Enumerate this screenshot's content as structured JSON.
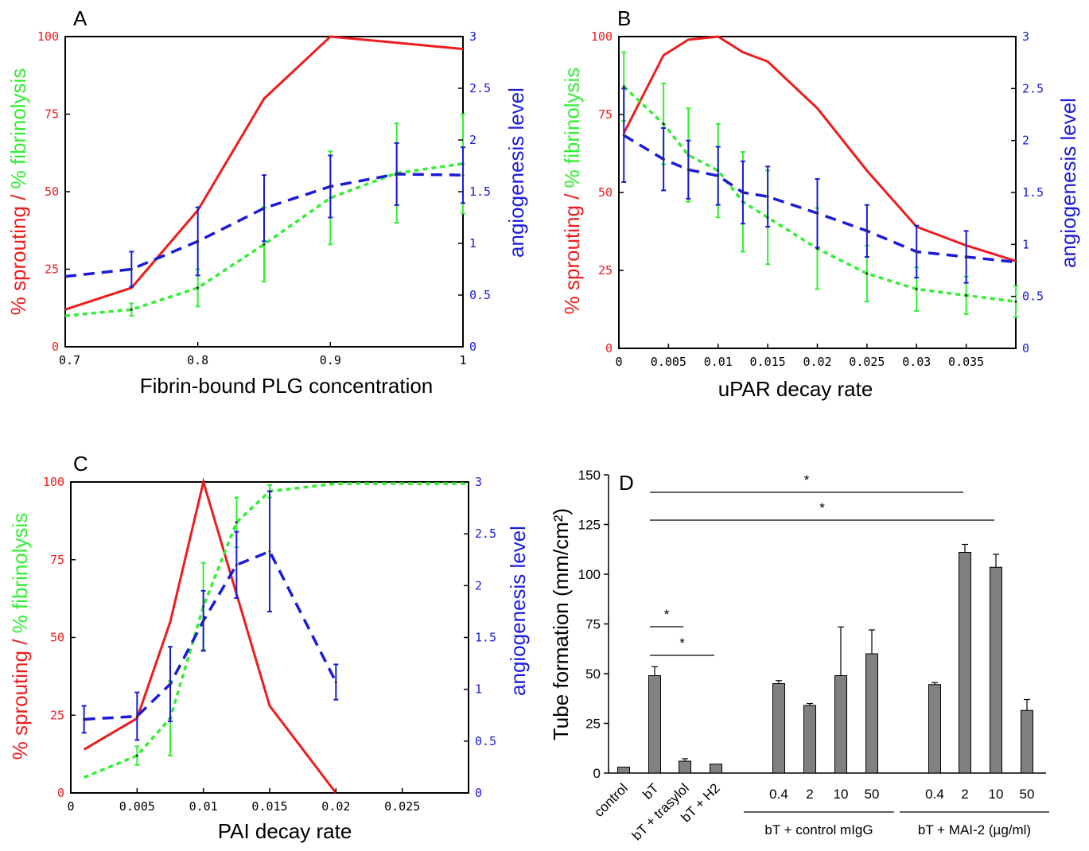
{
  "colors": {
    "red": "#ee1c1c",
    "green": "#33ee33",
    "blue": "#1a1adb",
    "bar": "#808080",
    "black": "#000000"
  },
  "chart_data": [
    {
      "panel": "A",
      "type": "line",
      "xlabel": "Fibrin-bound PLG concentration",
      "ylabel_left_red": "% sprouting",
      "ylabel_left_sep": " / ",
      "ylabel_left_green": "% fibrinolysis",
      "ylabel_right": "angiogenesis level",
      "xlim": [
        0.7,
        1.0
      ],
      "ylim_left": [
        0,
        100
      ],
      "ylim_right": [
        0,
        3
      ],
      "xticks": [
        "0.7",
        "0.8",
        "0.9",
        "1"
      ],
      "xtick_values": [
        0.7,
        0.8,
        0.9,
        1.0
      ],
      "yticks_left": [
        "0",
        "25",
        "50",
        "75",
        "100"
      ],
      "yticks_right": [
        "0",
        "0.5",
        "1",
        "1.5",
        "2",
        "2.5",
        "3"
      ],
      "series": [
        {
          "name": "% sprouting",
          "color": "red",
          "style": "solid",
          "x": [
            0.7,
            0.75,
            0.8,
            0.85,
            0.9,
            0.95,
            1.0
          ],
          "y": [
            12,
            19,
            44,
            80,
            100,
            98,
            96
          ]
        },
        {
          "name": "% fibrinolysis",
          "color": "green",
          "style": "dotted",
          "x": [
            0.7,
            0.75,
            0.8,
            0.85,
            0.9,
            0.95,
            1.0
          ],
          "y": [
            10,
            12,
            19,
            33,
            48,
            56,
            59
          ],
          "err": [
            0,
            2,
            6,
            12,
            15,
            16,
            16
          ]
        },
        {
          "name": "angiogenesis level",
          "color": "blue",
          "style": "dashed",
          "axis": "right",
          "x": [
            0.7,
            0.75,
            0.8,
            0.85,
            0.9,
            0.95,
            1.0
          ],
          "y": [
            0.68,
            0.75,
            1.02,
            1.34,
            1.55,
            1.67,
            1.66
          ],
          "err": [
            0,
            0.17,
            0.33,
            0.32,
            0.3,
            0.3,
            0.27
          ]
        }
      ]
    },
    {
      "panel": "B",
      "type": "line",
      "xlabel": "uPAR decay rate",
      "ylabel_left_red": "% sprouting",
      "ylabel_left_sep": " / ",
      "ylabel_left_green": "% fibrinolysis",
      "ylabel_right": "angiogenesis level",
      "xlim": [
        0,
        0.04
      ],
      "ylim_left": [
        0,
        100
      ],
      "ylim_right": [
        0,
        3
      ],
      "xticks": [
        "0",
        "0.005",
        "0.01",
        "0.015",
        "0.02",
        "0.025",
        "0.03",
        "0.035"
      ],
      "xtick_values": [
        0,
        0.005,
        0.01,
        0.015,
        0.02,
        0.025,
        0.03,
        0.035
      ],
      "yticks_left": [
        "0",
        "25",
        "50",
        "75",
        "100"
      ],
      "yticks_right": [
        "0",
        "0.5",
        "1",
        "1.5",
        "2",
        "2.5",
        "3"
      ],
      "series": [
        {
          "name": "% sprouting",
          "color": "red",
          "style": "solid",
          "x": [
            0.0005,
            0.0045,
            0.007,
            0.01,
            0.0125,
            0.015,
            0.02,
            0.025,
            0.03,
            0.035,
            0.04
          ],
          "y": [
            69,
            94,
            99,
            100,
            95,
            92,
            77,
            57,
            39,
            33,
            28
          ]
        },
        {
          "name": "% fibrinolysis",
          "color": "green",
          "style": "dotted",
          "x": [
            0.0005,
            0.0045,
            0.007,
            0.01,
            0.0125,
            0.015,
            0.02,
            0.025,
            0.03,
            0.035,
            0.04
          ],
          "y": [
            84,
            72,
            62,
            57,
            47,
            42,
            32,
            24,
            19,
            17,
            15
          ],
          "err": [
            11,
            13,
            15,
            15,
            16,
            15,
            13,
            9,
            7,
            6,
            5
          ]
        },
        {
          "name": "angiogenesis level",
          "color": "blue",
          "style": "dashed",
          "axis": "right",
          "x": [
            0.0005,
            0.0045,
            0.007,
            0.01,
            0.0125,
            0.015,
            0.02,
            0.025,
            0.03,
            0.035,
            0.04
          ],
          "y": [
            2.05,
            1.82,
            1.72,
            1.66,
            1.5,
            1.46,
            1.3,
            1.13,
            0.93,
            0.88,
            0.83
          ],
          "err": [
            0.45,
            0.3,
            0.28,
            0.28,
            0.3,
            0.29,
            0.33,
            0.25,
            0.25,
            0.25,
            0
          ]
        }
      ]
    },
    {
      "panel": "C",
      "type": "line",
      "xlabel": "PAI decay rate",
      "ylabel_left_red": "% sprouting",
      "ylabel_left_sep": " / ",
      "ylabel_left_green": "% fibrinolysis",
      "ylabel_right": "angiogenesis level",
      "xlim": [
        0,
        0.03
      ],
      "ylim_left": [
        0,
        100
      ],
      "ylim_right": [
        0,
        3
      ],
      "xticks": [
        "0",
        "0.005",
        "0.01",
        "0.015",
        "0.02",
        "0.025"
      ],
      "xtick_values": [
        0,
        0.005,
        0.01,
        0.015,
        0.02,
        0.025
      ],
      "yticks_left": [
        "0",
        "25",
        "50",
        "75",
        "100"
      ],
      "yticks_right": [
        "0",
        "0.5",
        "1",
        "1.5",
        "2",
        "2.5",
        "3"
      ],
      "series": [
        {
          "name": "% sprouting",
          "color": "red",
          "style": "solid",
          "x": [
            0.001,
            0.005,
            0.0075,
            0.01,
            0.015,
            0.02
          ],
          "y": [
            14,
            24,
            55,
            100,
            28,
            0
          ]
        },
        {
          "name": "% fibrinolysis",
          "color": "green",
          "style": "dotted",
          "x": [
            0.001,
            0.005,
            0.0075,
            0.01,
            0.0125,
            0.015,
            0.02,
            0.025,
            0.03
          ],
          "y": [
            5,
            12,
            24,
            60,
            87,
            97,
            99.5,
            99.5,
            99.5
          ],
          "err": [
            0,
            3,
            12,
            14,
            8,
            2,
            0,
            0,
            0
          ]
        },
        {
          "name": "angiogenesis level",
          "color": "blue",
          "style": "dashed",
          "axis": "right",
          "x": [
            0.001,
            0.005,
            0.0075,
            0.01,
            0.0125,
            0.015,
            0.02
          ],
          "y": [
            0.71,
            0.74,
            1.05,
            1.66,
            2.2,
            2.33,
            1.07
          ],
          "err": [
            0.13,
            0.23,
            0.36,
            0.29,
            0.32,
            0.58,
            0.17
          ]
        }
      ]
    },
    {
      "panel": "D",
      "type": "bar",
      "ylabel": "Tube formation (mm/cm²)",
      "ylim": [
        0,
        150
      ],
      "yticks": [
        "0",
        "25",
        "50",
        "75",
        "100",
        "125",
        "150"
      ],
      "categories": [
        "control",
        "bT",
        "bT + trasylol",
        "bT + H2",
        "0.4",
        "2",
        "10",
        "50",
        "0.4",
        "2",
        "10",
        "50"
      ],
      "values": [
        3,
        49,
        6,
        4.5,
        45,
        34,
        49,
        60,
        44.5,
        111,
        103.5,
        31.5
      ],
      "errors": [
        0,
        4.5,
        1.2,
        0,
        1.5,
        1,
        24.5,
        12,
        1,
        4,
        6.5,
        5.5
      ],
      "groups": [
        {
          "label": "bT + control mIgG",
          "from": 4,
          "to": 7
        },
        {
          "label": "bT + MAI-2 (µg/ml)",
          "from": 8,
          "to": 11
        }
      ],
      "significance": [
        {
          "from": 1,
          "to": 9,
          "label": "*"
        },
        {
          "from": 1,
          "to": 10,
          "label": "*"
        },
        {
          "from": 1,
          "to": 2,
          "label": "*"
        },
        {
          "from": 1,
          "to": 3,
          "label": "*"
        }
      ]
    }
  ]
}
